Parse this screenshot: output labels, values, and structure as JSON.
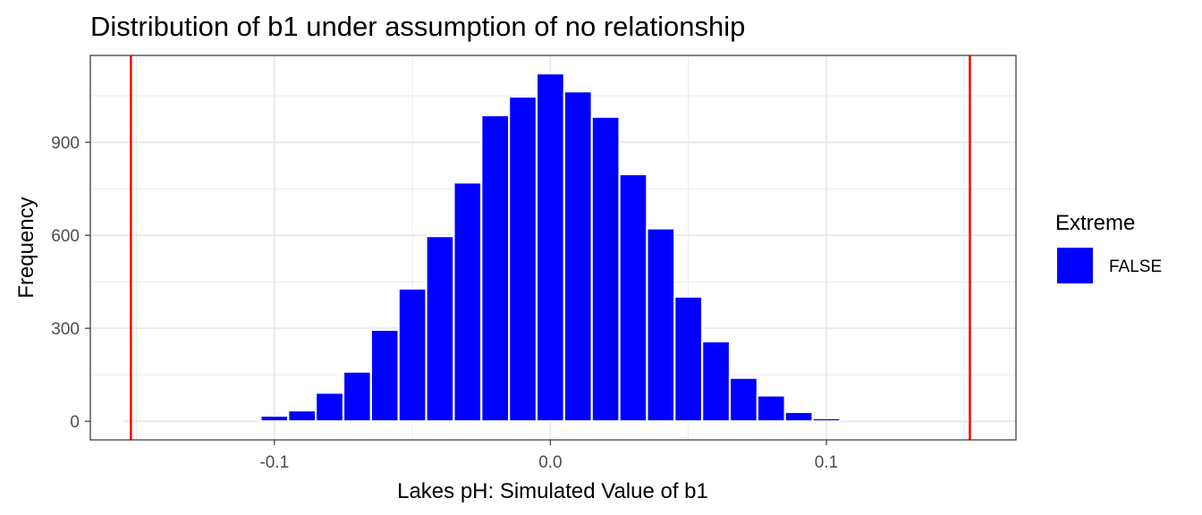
{
  "chart_data": {
    "type": "bar",
    "title": "Distribution of b1 under assumption of no relationship",
    "xlabel": "Lakes pH: Simulated Value of b1",
    "ylabel": "Frequency",
    "xlim": [
      -0.1667,
      0.1687
    ],
    "ylim": [
      -60,
      1180
    ],
    "bin_width": 0.01,
    "x_ticks": [
      -0.1,
      0.0,
      0.1
    ],
    "x_tick_labels": [
      "-0.1",
      "0.0",
      "0.1"
    ],
    "y_ticks": [
      0,
      300,
      600,
      900
    ],
    "y_tick_labels": [
      "0",
      "300",
      "600",
      "900"
    ],
    "grid": true,
    "legend": {
      "title": "Extreme",
      "position": "right",
      "entries": [
        {
          "label": "FALSE",
          "color": "#0000FF"
        }
      ]
    },
    "bar_color": "#0000FF",
    "series": [
      {
        "name": "FALSE",
        "x": [
          -0.16,
          -0.1,
          -0.09,
          -0.08,
          -0.07,
          -0.06,
          -0.05,
          -0.04,
          -0.03,
          -0.02,
          -0.01,
          0.0,
          0.01,
          0.02,
          0.03,
          0.04,
          0.05,
          0.06,
          0.07,
          0.08,
          0.09,
          0.1
        ],
        "values": [
          1,
          18,
          35,
          92,
          160,
          295,
          428,
          597,
          770,
          987,
          1047,
          1122,
          1064,
          982,
          797,
          622,
          402,
          258,
          140,
          83,
          30,
          10
        ]
      }
    ],
    "annotations": [
      {
        "type": "vline",
        "x": -0.152,
        "color": "#FF0000"
      },
      {
        "type": "vline",
        "x": 0.152,
        "color": "#FF0000"
      }
    ]
  }
}
